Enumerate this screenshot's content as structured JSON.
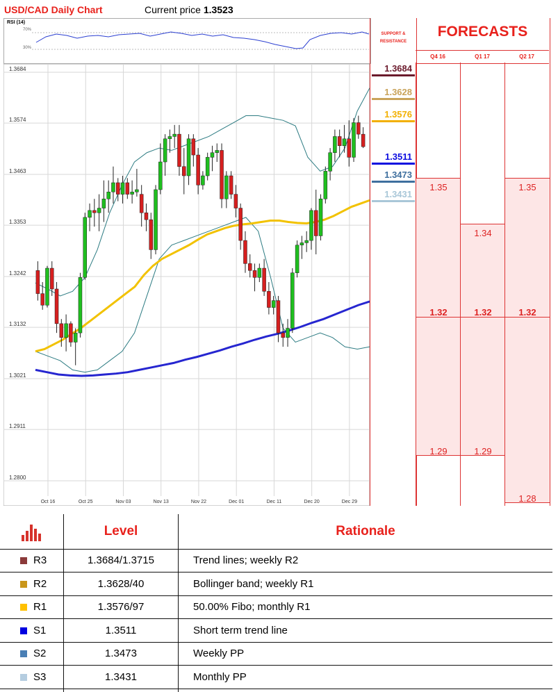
{
  "header": {
    "title": "USD/CAD Daily Chart",
    "price_prefix": "Current price",
    "price_value": "1.3523"
  },
  "rsi": {
    "label": "RSI (14)",
    "ticks": [
      "70%",
      "30%"
    ]
  },
  "chart_data": {
    "type": "candlestick",
    "y_ticks": [
      "1.3684",
      "1.3574",
      "1.3463",
      "1.3353",
      "1.3242",
      "1.3132",
      "1.3021",
      "1.2911",
      "1.2800"
    ],
    "ylim": [
      1.28,
      1.3684
    ],
    "x_ticks": [
      "Oct 16",
      "Oct 25",
      "Nov 03",
      "Nov 13",
      "Nov 22",
      "Dec 01",
      "Dec 11",
      "Dec 20",
      "Dec 29"
    ],
    "candles": [
      [
        1.3255,
        1.3275,
        1.319,
        1.3205
      ],
      [
        1.3205,
        1.323,
        1.317,
        1.318
      ],
      [
        1.318,
        1.3265,
        1.3175,
        1.326
      ],
      [
        1.326,
        1.3275,
        1.32,
        1.3215
      ],
      [
        1.3215,
        1.323,
        1.312,
        1.314
      ],
      [
        1.314,
        1.315,
        1.309,
        1.311
      ],
      [
        1.311,
        1.316,
        1.308,
        1.314
      ],
      [
        1.314,
        1.3145,
        1.309,
        1.31
      ],
      [
        1.31,
        1.313,
        1.305,
        1.312
      ],
      [
        1.312,
        1.325,
        1.311,
        1.324
      ],
      [
        1.324,
        1.338,
        1.3235,
        1.337
      ],
      [
        1.337,
        1.34,
        1.334,
        1.3385
      ],
      [
        1.3385,
        1.341,
        1.335,
        1.338
      ],
      [
        1.338,
        1.342,
        1.334,
        1.339
      ],
      [
        1.339,
        1.345,
        1.336,
        1.341
      ],
      [
        1.341,
        1.345,
        1.338,
        1.3425
      ],
      [
        1.3425,
        1.348,
        1.34,
        1.3445
      ],
      [
        1.3445,
        1.3455,
        1.3405,
        1.342
      ],
      [
        1.342,
        1.346,
        1.34,
        1.3445
      ],
      [
        1.3445,
        1.3455,
        1.341,
        1.342
      ],
      [
        1.342,
        1.345,
        1.34,
        1.3425
      ],
      [
        1.3425,
        1.3475,
        1.3415,
        1.343
      ],
      [
        1.342,
        1.344,
        1.335,
        1.338
      ],
      [
        1.338,
        1.34,
        1.334,
        1.3365
      ],
      [
        1.3365,
        1.338,
        1.328,
        1.33
      ],
      [
        1.33,
        1.344,
        1.329,
        1.343
      ],
      [
        1.343,
        1.353,
        1.342,
        1.349
      ],
      [
        1.349,
        1.355,
        1.346,
        1.354
      ],
      [
        1.354,
        1.356,
        1.351,
        1.3545
      ],
      [
        1.3545,
        1.357,
        1.352,
        1.355
      ],
      [
        1.355,
        1.357,
        1.346,
        1.348
      ],
      [
        1.348,
        1.352,
        1.342,
        1.346
      ],
      [
        1.346,
        1.355,
        1.344,
        1.354
      ],
      [
        1.354,
        1.355,
        1.348,
        1.3505
      ],
      [
        1.3505,
        1.352,
        1.342,
        1.344
      ],
      [
        1.344,
        1.347,
        1.343,
        1.346
      ],
      [
        1.346,
        1.351,
        1.345,
        1.35
      ],
      [
        1.35,
        1.3525,
        1.347,
        1.351
      ],
      [
        1.351,
        1.353,
        1.349,
        1.3515
      ],
      [
        1.3515,
        1.353,
        1.339,
        1.341
      ],
      [
        1.341,
        1.347,
        1.339,
        1.346
      ],
      [
        1.346,
        1.347,
        1.341,
        1.342
      ],
      [
        1.342,
        1.344,
        1.337,
        1.339
      ],
      [
        1.339,
        1.34,
        1.33,
        1.332
      ],
      [
        1.332,
        1.334,
        1.325,
        1.327
      ],
      [
        1.327,
        1.329,
        1.324,
        1.3255
      ],
      [
        1.3255,
        1.327,
        1.321,
        1.324
      ],
      [
        1.324,
        1.327,
        1.323,
        1.326
      ],
      [
        1.326,
        1.328,
        1.32,
        1.321
      ],
      [
        1.321,
        1.323,
        1.316,
        1.3175
      ],
      [
        1.3175,
        1.32,
        1.316,
        1.319
      ],
      [
        1.319,
        1.32,
        1.31,
        1.312
      ],
      [
        1.312,
        1.314,
        1.309,
        1.311
      ],
      [
        1.311,
        1.315,
        1.309,
        1.313
      ],
      [
        1.313,
        1.326,
        1.312,
        1.325
      ],
      [
        1.325,
        1.332,
        1.324,
        1.331
      ],
      [
        1.331,
        1.333,
        1.328,
        1.3315
      ],
      [
        1.3315,
        1.334,
        1.3295,
        1.332
      ],
      [
        1.332,
        1.339,
        1.33,
        1.3385
      ],
      [
        1.3385,
        1.343,
        1.329,
        1.333
      ],
      [
        1.333,
        1.342,
        1.332,
        1.341
      ],
      [
        1.341,
        1.348,
        1.34,
        1.347
      ],
      [
        1.347,
        1.352,
        1.345,
        1.351
      ],
      [
        1.351,
        1.356,
        1.349,
        1.3545
      ],
      [
        1.3545,
        1.356,
        1.35,
        1.3525
      ],
      [
        1.3525,
        1.357,
        1.351,
        1.354
      ],
      [
        1.354,
        1.358,
        1.348,
        1.35
      ],
      [
        1.35,
        1.3585,
        1.349,
        1.3575
      ],
      [
        1.3575,
        1.359,
        1.354,
        1.355
      ],
      [
        1.355,
        1.3565,
        1.352,
        1.3523
      ]
    ],
    "sma_yellow": [
      1.308,
      1.3085,
      1.3095,
      1.3105,
      1.3118,
      1.313,
      1.3145,
      1.316,
      1.3175,
      1.319,
      1.3205,
      1.322,
      1.3245,
      1.3265,
      1.328,
      1.329,
      1.33,
      1.331,
      1.3322,
      1.3333,
      1.334,
      1.3347,
      1.3352,
      1.3355,
      1.3357,
      1.336,
      1.3363,
      1.3363,
      1.336,
      1.3358,
      1.3357,
      1.336,
      1.3365,
      1.3373,
      1.3383,
      1.3393,
      1.34,
      1.3407
    ],
    "sma_blue": [
      1.304,
      1.3035,
      1.303,
      1.3028,
      1.3027,
      1.3028,
      1.303,
      1.3032,
      1.3035,
      1.304,
      1.3045,
      1.305,
      1.3055,
      1.3062,
      1.3068,
      1.3075,
      1.3082,
      1.309,
      1.3097,
      1.3105,
      1.3112,
      1.3118,
      1.3125,
      1.3133,
      1.3142,
      1.315,
      1.316,
      1.317,
      1.318,
      1.3188
    ],
    "bb_upper": [
      1.3228,
      1.3215,
      1.32,
      1.321,
      1.324,
      1.33,
      1.338,
      1.344,
      1.349,
      1.351,
      1.352,
      1.3515,
      1.3525,
      1.3535,
      1.3545,
      1.356,
      1.3575,
      1.359,
      1.359,
      1.3585,
      1.358,
      1.3568,
      1.35,
      1.347,
      1.348,
      1.352,
      1.36,
      1.365
    ],
    "bb_lower": [
      1.308,
      1.307,
      1.306,
      1.304,
      1.3035,
      1.304,
      1.306,
      1.308,
      1.312,
      1.32,
      1.328,
      1.331,
      1.332,
      1.333,
      1.334,
      1.335,
      1.336,
      1.337,
      1.334,
      1.324,
      1.313,
      1.31,
      1.311,
      1.312,
      1.311,
      1.309,
      1.3085,
      1.309
    ]
  },
  "support_resistance": {
    "header": [
      "SUPPORT &",
      "RESISTANCE"
    ],
    "levels": [
      {
        "value": "1.3684",
        "color": "#6b1a2c"
      },
      {
        "value": "1.3628",
        "color": "#c9a35a"
      },
      {
        "value": "1.3576",
        "color": "#f2b000"
      },
      {
        "value": "1.3511",
        "color": "#0a0adf"
      },
      {
        "value": "1.3473",
        "color": "#3e6f9e"
      },
      {
        "value": "1.3431",
        "color": "#a9c7d8"
      }
    ]
  },
  "forecasts": {
    "title": "FORECASTS",
    "columns": [
      {
        "label": "Q4 16",
        "high": "1.35",
        "mid": "1.32",
        "low": "1.29"
      },
      {
        "label": "Q1 17",
        "high": "1.34",
        "mid": "1.32",
        "low": "1.29"
      },
      {
        "label": "Q2 17",
        "high": "1.35",
        "mid": "1.32",
        "low": "1.28"
      }
    ]
  },
  "table": {
    "headers": {
      "level": "Level",
      "rationale": "Rationale"
    },
    "rows": [
      {
        "name": "R3",
        "level": "1.3684/1.3715",
        "rationale": "Trend lines; weekly R2",
        "color": "#8b3a3a"
      },
      {
        "name": "R2",
        "level": "1.3628/40",
        "rationale": "Bollinger band; weekly R1",
        "color": "#c9961a"
      },
      {
        "name": "R1",
        "level": "1.3576/97",
        "rationale": "50.00% Fibo; monthly R1",
        "color": "#ffc000"
      },
      {
        "name": "S1",
        "level": "1.3511",
        "rationale": "Short term trend line",
        "color": "#0000e0"
      },
      {
        "name": "S2",
        "level": "1.3473",
        "rationale": "Weekly PP",
        "color": "#4a7fb5"
      },
      {
        "name": "S3",
        "level": "1.3431",
        "rationale": "Monthly PP",
        "color": "#b5cde0"
      }
    ]
  }
}
